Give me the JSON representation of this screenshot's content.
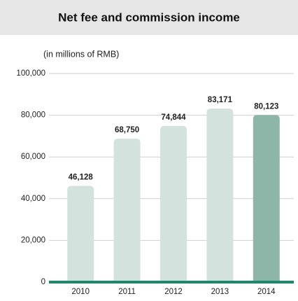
{
  "chart_data": {
    "type": "bar",
    "title": "Net fee and commission income",
    "subtitle": "(in millions of RMB)",
    "categories": [
      "2010",
      "2011",
      "2012",
      "2013",
      "2014"
    ],
    "values": [
      46128,
      68750,
      74844,
      83171,
      80123
    ],
    "value_labels": [
      "46,128",
      "68,750",
      "74,844",
      "83,171",
      "80,123"
    ],
    "colors": [
      "#d3e2dd",
      "#d3e2dd",
      "#d3e2dd",
      "#d3e2dd",
      "#8db6a8"
    ],
    "ylim": [
      0,
      100000
    ],
    "yticks": [
      0,
      {
        "value": 20000,
        "label": "20,000"
      },
      {
        "value": 40000,
        "label": "40,000"
      },
      {
        "value": 60000,
        "label": "60,000"
      },
      {
        "value": 80000,
        "label": "80,000"
      },
      {
        "value": 100000,
        "label": "100,000"
      }
    ],
    "grid": true
  }
}
